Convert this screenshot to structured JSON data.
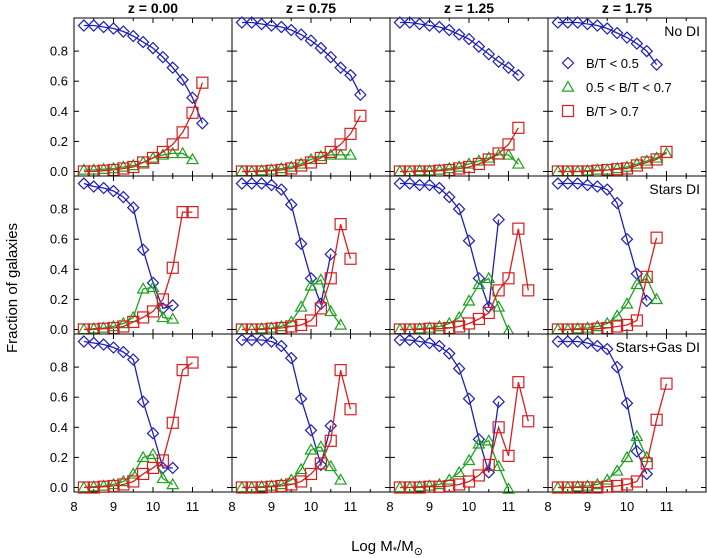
{
  "chart_data": {
    "type": "line",
    "ylabel": "Fraction of galaxies",
    "xlabel": "Log M",
    "xlabel_sub": "*",
    "xlabel_tail": "/M",
    "xlabel_sun": "⊙",
    "xlim": [
      8.0,
      12.0
    ],
    "ylim": [
      -0.03,
      1.02
    ],
    "xticks": [
      "8",
      "9",
      "10",
      "11"
    ],
    "yticks": [
      "0.0",
      "0.2",
      "0.4",
      "0.6",
      "0.8"
    ],
    "column_labels": [
      "z = 0.00",
      "z = 0.75",
      "z = 1.25",
      "z = 1.75"
    ],
    "row_labels": [
      "No DI",
      "Stars DI",
      "Stars+Gas DI"
    ],
    "legend": [
      {
        "name": "B/T < 0.5",
        "marker": "diamond",
        "color": "#1f1fb4"
      },
      {
        "name": "0.5 < B/T < 0.7",
        "marker": "triangle",
        "color": "#1fa01f"
      },
      {
        "name": "B/T > 0.7",
        "marker": "square",
        "color": "#d62020"
      }
    ],
    "series_colors": {
      "blue": "#1f1fb4",
      "green": "#1fa01f",
      "red": "#d62020"
    },
    "panels": [
      {
        "row": 0,
        "col": 0,
        "x": [
          8.25,
          8.5,
          8.75,
          9.0,
          9.25,
          9.5,
          9.75,
          10.0,
          10.25,
          10.5,
          10.75,
          11.0,
          11.25,
          11.5
        ],
        "blue": [
          0.97,
          0.97,
          0.96,
          0.95,
          0.93,
          0.9,
          0.86,
          0.82,
          0.76,
          0.69,
          0.61,
          0.49,
          0.32
        ],
        "green": [
          0.01,
          0.01,
          0.015,
          0.02,
          0.03,
          0.04,
          0.06,
          0.09,
          0.11,
          0.12,
          0.12,
          0.08
        ],
        "red": [
          0.0,
          0.0,
          0.005,
          0.01,
          0.02,
          0.03,
          0.06,
          0.09,
          0.13,
          0.18,
          0.26,
          0.39,
          0.59
        ]
      },
      {
        "row": 0,
        "col": 1,
        "x": [
          8.25,
          8.5,
          8.75,
          9.0,
          9.25,
          9.5,
          9.75,
          10.0,
          10.25,
          10.5,
          10.75,
          11.0,
          11.25,
          11.5
        ],
        "blue": [
          0.99,
          0.99,
          0.98,
          0.97,
          0.96,
          0.94,
          0.91,
          0.87,
          0.82,
          0.76,
          0.69,
          0.64,
          0.51
        ],
        "green": [
          0.0,
          0.0,
          0.005,
          0.01,
          0.02,
          0.03,
          0.05,
          0.08,
          0.1,
          0.11,
          0.11,
          0.11
        ],
        "red": [
          0.0,
          0.0,
          0.0,
          0.005,
          0.01,
          0.02,
          0.04,
          0.06,
          0.09,
          0.13,
          0.18,
          0.25,
          0.37
        ]
      },
      {
        "row": 0,
        "col": 2,
        "x": [
          8.25,
          8.5,
          8.75,
          9.0,
          9.25,
          9.5,
          9.75,
          10.0,
          10.25,
          10.5,
          10.75,
          11.0,
          11.25,
          11.5
        ],
        "blue": [
          0.99,
          0.99,
          0.98,
          0.97,
          0.96,
          0.94,
          0.91,
          0.88,
          0.83,
          0.78,
          0.73,
          0.69,
          0.64
        ],
        "green": [
          0.0,
          0.0,
          0.005,
          0.005,
          0.01,
          0.02,
          0.03,
          0.05,
          0.07,
          0.09,
          0.11,
          0.11,
          0.05
        ],
        "red": [
          0.0,
          0.0,
          0.0,
          0.0,
          0.005,
          0.01,
          0.02,
          0.03,
          0.05,
          0.08,
          0.12,
          0.18,
          0.29
        ]
      },
      {
        "row": 0,
        "col": 3,
        "x": [
          8.25,
          8.5,
          8.75,
          9.0,
          9.25,
          9.5,
          9.75,
          10.0,
          10.25,
          10.5,
          10.75,
          11.0,
          11.25,
          11.5
        ],
        "blue": [
          0.99,
          0.99,
          0.99,
          0.98,
          0.97,
          0.95,
          0.92,
          0.89,
          0.85,
          0.8,
          0.71
        ],
        "green": [
          0.0,
          0.0,
          0.0,
          0.005,
          0.01,
          0.01,
          0.02,
          0.03,
          0.05,
          0.07,
          0.09,
          0.12
        ],
        "red": [
          0.0,
          0.0,
          0.0,
          0.0,
          0.005,
          0.01,
          0.015,
          0.02,
          0.04,
          0.06,
          0.08,
          0.13
        ]
      },
      {
        "row": 1,
        "col": 0,
        "x": [
          8.25,
          8.5,
          8.75,
          9.0,
          9.25,
          9.5,
          9.75,
          10.0,
          10.25,
          10.5,
          10.75,
          11.0,
          11.25,
          11.5
        ],
        "blue": [
          0.97,
          0.95,
          0.94,
          0.92,
          0.88,
          0.81,
          0.53,
          0.31,
          0.14,
          0.16
        ],
        "green": [
          0.0,
          0.005,
          0.01,
          0.02,
          0.04,
          0.08,
          0.27,
          0.28,
          0.08,
          0.07
        ],
        "red": [
          0.0,
          0.0,
          0.005,
          0.01,
          0.02,
          0.05,
          0.08,
          0.12,
          0.2,
          0.41,
          0.78,
          0.78
        ]
      },
      {
        "row": 1,
        "col": 1,
        "x": [
          8.25,
          8.5,
          8.75,
          9.0,
          9.25,
          9.5,
          9.75,
          10.0,
          10.25,
          10.5,
          10.75,
          11.0,
          11.25,
          11.5
        ],
        "blue": [
          0.97,
          0.97,
          0.97,
          0.96,
          0.93,
          0.83,
          0.57,
          0.34,
          0.17,
          0.5
        ],
        "green": [
          0.0,
          0.0,
          0.005,
          0.01,
          0.02,
          0.05,
          0.15,
          0.29,
          0.33,
          0.12,
          0.03
        ],
        "red": [
          0.0,
          0.0,
          0.0,
          0.005,
          0.01,
          0.02,
          0.03,
          0.06,
          0.14,
          0.34,
          0.7,
          0.47
        ]
      },
      {
        "row": 1,
        "col": 2,
        "x": [
          8.25,
          8.5,
          8.75,
          9.0,
          9.25,
          9.5,
          9.75,
          10.0,
          10.25,
          10.5,
          10.75,
          11.0,
          11.25,
          11.5
        ],
        "blue": [
          0.97,
          0.97,
          0.96,
          0.96,
          0.94,
          0.88,
          0.8,
          0.59,
          0.34,
          0.15,
          0.73
        ],
        "green": [
          0.0,
          0.0,
          0.005,
          0.01,
          0.02,
          0.04,
          0.08,
          0.19,
          0.3,
          0.34,
          0.15,
          -0.01
        ],
        "red": [
          0.0,
          0.0,
          0.0,
          0.005,
          0.005,
          0.01,
          0.02,
          0.04,
          0.07,
          0.11,
          0.26,
          0.34,
          0.67,
          0.26
        ]
      },
      {
        "row": 1,
        "col": 3,
        "x": [
          8.25,
          8.5,
          8.75,
          9.0,
          9.25,
          9.5,
          9.75,
          10.0,
          10.25,
          10.5,
          10.75,
          11.0,
          11.25,
          11.5
        ],
        "blue": [
          0.97,
          0.97,
          0.97,
          0.96,
          0.95,
          0.93,
          0.84,
          0.6,
          0.37,
          0.19
        ],
        "green": [
          0.0,
          0.0,
          0.005,
          0.01,
          0.02,
          0.04,
          0.09,
          0.17,
          0.3,
          0.34,
          0.2
        ],
        "red": [
          0.0,
          0.0,
          0.0,
          0.0,
          0.005,
          0.01,
          0.02,
          0.03,
          0.06,
          0.35,
          0.61
        ]
      },
      {
        "row": 2,
        "col": 0,
        "x": [
          8.25,
          8.5,
          8.75,
          9.0,
          9.25,
          9.5,
          9.75,
          10.0,
          10.25,
          10.5,
          10.75,
          11.0,
          11.25,
          11.5
        ],
        "blue": [
          0.97,
          0.96,
          0.95,
          0.93,
          0.9,
          0.85,
          0.57,
          0.36,
          0.13,
          0.13
        ],
        "green": [
          0.0,
          0.005,
          0.01,
          0.02,
          0.04,
          0.09,
          0.2,
          0.22,
          0.06,
          0.02
        ],
        "red": [
          0.0,
          0.0,
          0.005,
          0.01,
          0.02,
          0.04,
          0.09,
          0.13,
          0.18,
          0.43,
          0.78,
          0.83
        ]
      },
      {
        "row": 2,
        "col": 1,
        "x": [
          8.25,
          8.5,
          8.75,
          9.0,
          9.25,
          9.5,
          9.75,
          10.0,
          10.25,
          10.5,
          10.75,
          11.0,
          11.25,
          11.5
        ],
        "blue": [
          0.98,
          0.98,
          0.98,
          0.97,
          0.94,
          0.86,
          0.59,
          0.38,
          0.15,
          0.41
        ],
        "green": [
          0.0,
          0.0,
          0.005,
          0.01,
          0.02,
          0.05,
          0.12,
          0.25,
          0.27,
          0.14,
          0.05
        ],
        "red": [
          0.0,
          0.0,
          0.0,
          0.005,
          0.01,
          0.02,
          0.04,
          0.09,
          0.16,
          0.31,
          0.78,
          0.52
        ]
      },
      {
        "row": 2,
        "col": 2,
        "x": [
          8.25,
          8.5,
          8.75,
          9.0,
          9.25,
          9.5,
          9.75,
          10.0,
          10.25,
          10.5,
          10.75,
          11.0,
          11.25,
          11.5
        ],
        "blue": [
          0.98,
          0.98,
          0.97,
          0.96,
          0.94,
          0.89,
          0.79,
          0.59,
          0.32,
          0.1,
          0.57
        ],
        "green": [
          0.0,
          0.0,
          0.005,
          0.01,
          0.02,
          0.05,
          0.1,
          0.18,
          0.29,
          0.31,
          0.14,
          -0.01
        ],
        "red": [
          0.0,
          0.0,
          0.0,
          0.005,
          0.005,
          0.01,
          0.02,
          0.04,
          0.08,
          0.15,
          0.4,
          0.21,
          0.7,
          0.44
        ]
      },
      {
        "row": 2,
        "col": 3,
        "x": [
          8.25,
          8.5,
          8.75,
          9.0,
          9.25,
          9.5,
          9.75,
          10.0,
          10.25,
          10.5,
          10.75,
          11.0,
          11.25,
          11.5
        ],
        "blue": [
          0.97,
          0.97,
          0.97,
          0.96,
          0.94,
          0.92,
          0.8,
          0.56,
          0.24,
          0.09
        ],
        "green": [
          0.0,
          0.0,
          0.005,
          0.01,
          0.02,
          0.05,
          0.11,
          0.2,
          0.34,
          0.2
        ],
        "red": [
          0.0,
          0.0,
          0.0,
          0.0,
          0.0,
          0.005,
          0.01,
          0.02,
          0.04,
          0.16,
          0.45,
          0.69
        ]
      }
    ]
  }
}
